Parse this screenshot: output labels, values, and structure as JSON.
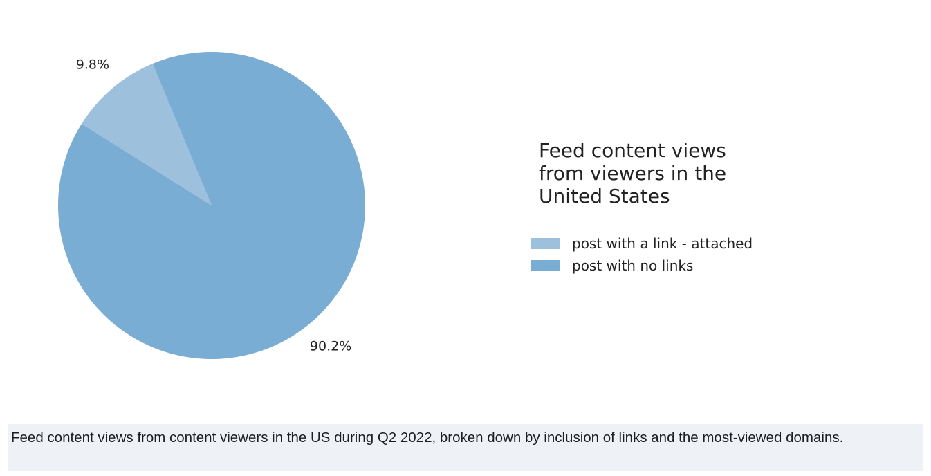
{
  "chart_data": {
    "type": "pie",
    "title_lines": [
      "Feed content views",
      "from viewers in the",
      "United States"
    ],
    "slices": [
      {
        "label": "post with a link - attached",
        "value": 9.8,
        "value_label": "9.8%",
        "color": "#9dc1dc"
      },
      {
        "label": "post with no links",
        "value": 90.2,
        "value_label": "90.2%",
        "color": "#7aadd3"
      }
    ],
    "legend_position": "right"
  },
  "caption": "Feed content views from content viewers in the US during Q2 2022, broken down by inclusion of links and the most-viewed domains."
}
